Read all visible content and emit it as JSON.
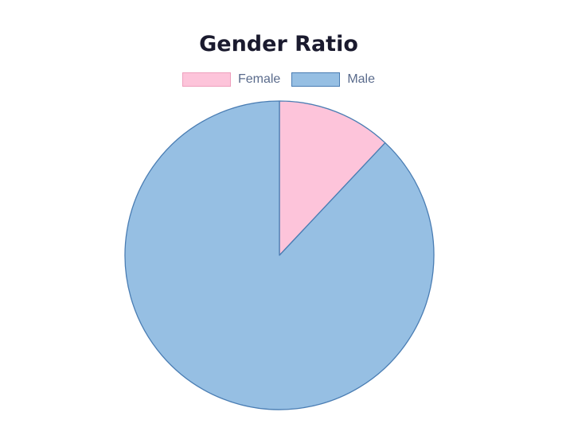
{
  "chart_data": {
    "type": "pie",
    "title": "Gender Ratio",
    "categories": [
      "Female",
      "Male"
    ],
    "values": [
      12,
      88
    ],
    "colors": {
      "Female": {
        "fill": "#fdc4da",
        "stroke": "#ee9fbd"
      },
      "Male": {
        "fill": "#96bfe3",
        "stroke": "#4a7db3"
      }
    },
    "legend": "top"
  }
}
